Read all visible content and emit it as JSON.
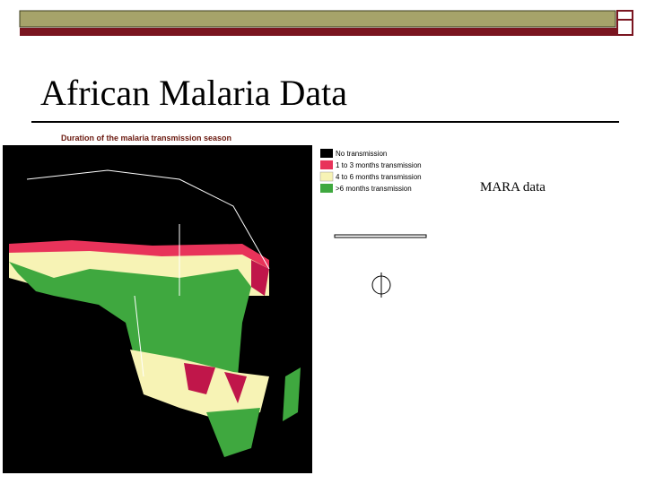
{
  "header": {
    "title": "African Malaria Data"
  },
  "figure": {
    "title": "Duration of the malaria transmission season",
    "legend": [
      "No transmission",
      "1 to 3 months transmission",
      "4 to 6 months transmission",
      ">6 months transmission"
    ]
  },
  "caption": "MARA data"
}
